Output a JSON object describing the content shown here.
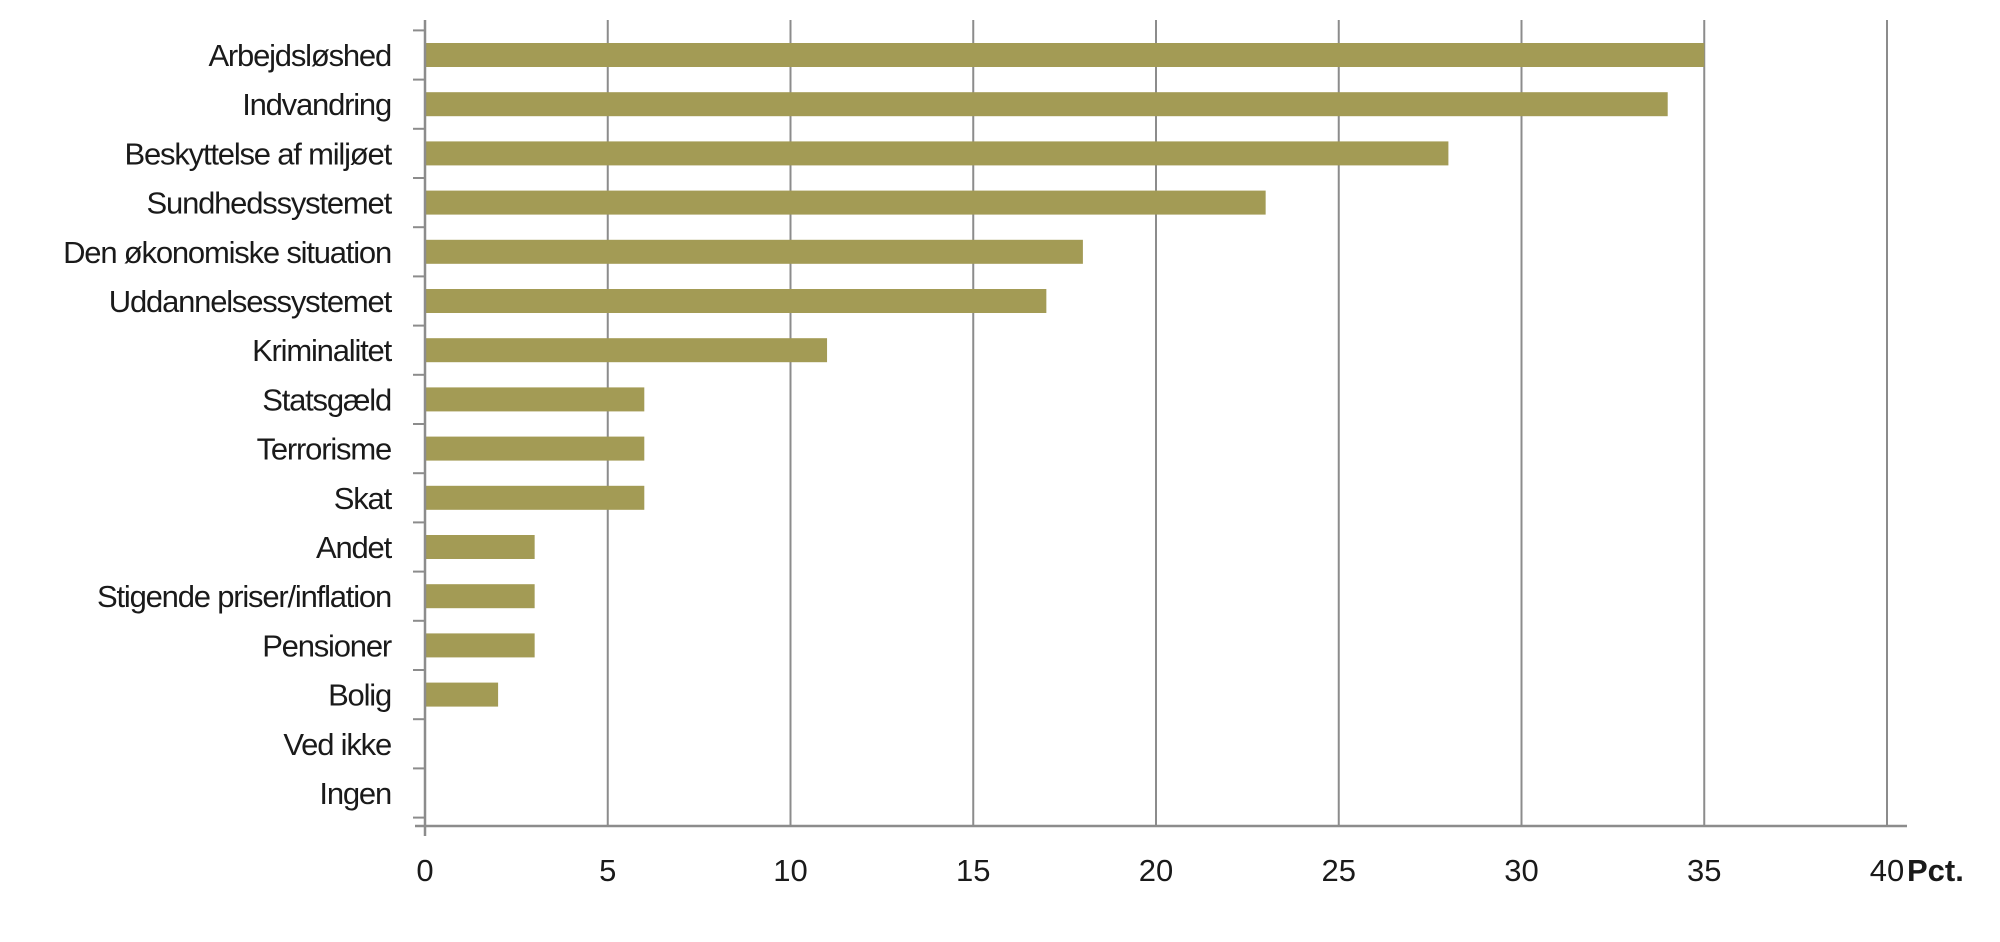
{
  "chart_data": {
    "type": "bar",
    "orientation": "horizontal",
    "categories": [
      "Arbejdsløshed",
      "Indvandring",
      "Beskyttelse af miljøet",
      "Sundhedssystemet",
      "Den økonomiske situation",
      "Uddannelsessystemet",
      "Kriminalitet",
      "Statsgæld",
      "Terrorisme",
      "Skat",
      "Andet",
      "Stigende priser/inflation",
      "Pensioner",
      "Bolig",
      "Ved ikke",
      "Ingen"
    ],
    "values": [
      35,
      34,
      28,
      23,
      18,
      17,
      11,
      6,
      6,
      6,
      3,
      3,
      3,
      2,
      0,
      0
    ],
    "xlim": [
      0,
      40
    ],
    "xticks": [
      "0",
      "5",
      "10",
      "15",
      "20",
      "25",
      "30",
      "35",
      "40"
    ],
    "xticks_values": [
      0,
      5,
      10,
      15,
      20,
      25,
      30,
      35,
      40
    ],
    "xunit": "Pct.",
    "bar_color": "#a39b55",
    "grid_color": "#8c8c8c",
    "grid": "vertical"
  }
}
